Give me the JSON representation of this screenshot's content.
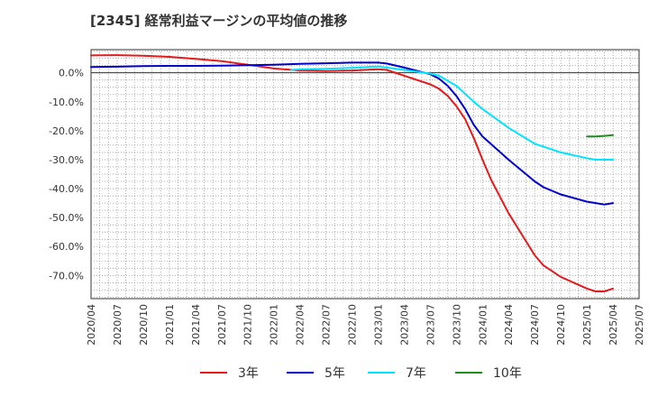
{
  "chart_data": {
    "type": "line",
    "title": "[2345]  経常利益マージンの平均値の推移",
    "xlabel": "",
    "ylabel": "",
    "ylim": [
      -78,
      8
    ],
    "grid": true,
    "legend_position": "bottom",
    "y_ticks": [
      {
        "value": 0,
        "label": "0.0%"
      },
      {
        "value": -10,
        "label": "-10.0%"
      },
      {
        "value": -20,
        "label": "-20.0%"
      },
      {
        "value": -30,
        "label": "-30.0%"
      },
      {
        "value": -40,
        "label": "-40.0%"
      },
      {
        "value": -50,
        "label": "-50.0%"
      },
      {
        "value": -60,
        "label": "-60.0%"
      },
      {
        "value": -70,
        "label": "-70.0%"
      }
    ],
    "x_ticks": [
      "2020/04",
      "2020/07",
      "2020/10",
      "2021/01",
      "2021/04",
      "2021/07",
      "2021/10",
      "2022/01",
      "2022/04",
      "2022/07",
      "2022/10",
      "2023/01",
      "2023/04",
      "2023/07",
      "2023/10",
      "2024/01",
      "2024/04",
      "2024/07",
      "2024/10",
      "2025/01",
      "2025/04",
      "2025/07"
    ],
    "series": [
      {
        "name": "3年",
        "color": "#e41a1c",
        "points": [
          [
            "2020/04",
            6.0
          ],
          [
            "2020/07",
            6.1
          ],
          [
            "2020/10",
            5.9
          ],
          [
            "2021/01",
            5.5
          ],
          [
            "2021/04",
            4.8
          ],
          [
            "2021/07",
            4.0
          ],
          [
            "2021/10",
            2.8
          ],
          [
            "2022/01",
            1.5
          ],
          [
            "2022/04",
            0.8
          ],
          [
            "2022/07",
            0.6
          ],
          [
            "2022/10",
            0.8
          ],
          [
            "2023/01",
            1.2
          ],
          [
            "2023/02",
            1.0
          ],
          [
            "2023/04",
            -1.0
          ],
          [
            "2023/07",
            -4.0
          ],
          [
            "2023/08",
            -5.5
          ],
          [
            "2023/09",
            -8.0
          ],
          [
            "2023/10",
            -11.5
          ],
          [
            "2023/11",
            -16.0
          ],
          [
            "2023/12",
            -22.5
          ],
          [
            "2024/01",
            -30.0
          ],
          [
            "2024/02",
            -37.0
          ],
          [
            "2024/04",
            -48.5
          ],
          [
            "2024/07",
            -63.0
          ],
          [
            "2024/08",
            -66.5
          ],
          [
            "2024/10",
            -70.5
          ],
          [
            "2025/01",
            -74.5
          ],
          [
            "2025/02",
            -75.5
          ],
          [
            "2025/03",
            -75.5
          ],
          [
            "2025/04",
            -74.5
          ]
        ]
      },
      {
        "name": "5年",
        "color": "#0000cc",
        "points": [
          [
            "2020/04",
            2.0
          ],
          [
            "2020/07",
            2.1
          ],
          [
            "2020/10",
            2.3
          ],
          [
            "2021/01",
            2.4
          ],
          [
            "2021/04",
            2.4
          ],
          [
            "2021/07",
            2.5
          ],
          [
            "2021/10",
            2.6
          ],
          [
            "2022/01",
            2.8
          ],
          [
            "2022/04",
            3.1
          ],
          [
            "2022/07",
            3.3
          ],
          [
            "2022/10",
            3.5
          ],
          [
            "2023/01",
            3.5
          ],
          [
            "2023/02",
            3.2
          ],
          [
            "2023/04",
            1.8
          ],
          [
            "2023/07",
            -0.5
          ],
          [
            "2023/08",
            -2.0
          ],
          [
            "2023/09",
            -4.5
          ],
          [
            "2023/10",
            -8.0
          ],
          [
            "2023/11",
            -12.5
          ],
          [
            "2023/12",
            -18.0
          ],
          [
            "2024/01",
            -22.0
          ],
          [
            "2024/04",
            -30.0
          ],
          [
            "2024/07",
            -37.5
          ],
          [
            "2024/08",
            -39.5
          ],
          [
            "2024/10",
            -42.0
          ],
          [
            "2025/01",
            -44.5
          ],
          [
            "2025/03",
            -45.5
          ],
          [
            "2025/04",
            -45.0
          ]
        ]
      },
      {
        "name": "7年",
        "color": "#00e5ff",
        "points": [
          [
            "2022/03",
            1.0
          ],
          [
            "2022/04",
            1.2
          ],
          [
            "2022/07",
            1.4
          ],
          [
            "2022/10",
            1.7
          ],
          [
            "2023/01",
            2.2
          ],
          [
            "2023/04",
            1.0
          ],
          [
            "2023/07",
            -0.3
          ],
          [
            "2023/08",
            -1.0
          ],
          [
            "2023/10",
            -4.5
          ],
          [
            "2023/12",
            -10.0
          ],
          [
            "2024/01",
            -12.5
          ],
          [
            "2024/04",
            -19.0
          ],
          [
            "2024/07",
            -24.5
          ],
          [
            "2024/10",
            -27.5
          ],
          [
            "2025/01",
            -29.5
          ],
          [
            "2025/02",
            -30.0
          ],
          [
            "2025/04",
            -30.0
          ]
        ]
      },
      {
        "name": "10年",
        "color": "#228b22",
        "points": [
          [
            "2025/01",
            -22.0
          ],
          [
            "2025/02",
            -22.0
          ],
          [
            "2025/03",
            -21.8
          ],
          [
            "2025/04",
            -21.5
          ]
        ]
      }
    ]
  }
}
